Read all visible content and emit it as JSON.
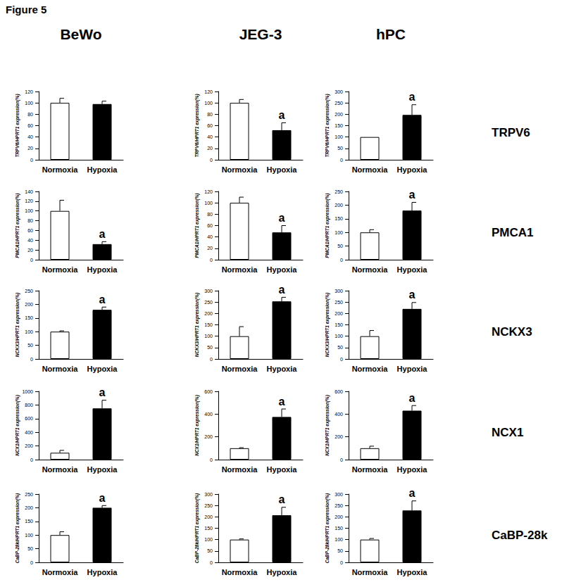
{
  "title": "Figure 5",
  "column_titles": [
    "BeWo",
    "JEG-3",
    "hPC"
  ],
  "row_labels": [
    "TRPV6",
    "PMCA1",
    "NCKX3",
    "NCX1",
    "CaBP-28k"
  ],
  "chart_data": [
    {
      "type": "bar",
      "y_label": "TRPV6/HPRT1 expression(%)",
      "categories": [
        "Normoxia",
        "Hypoxia"
      ],
      "values": [
        100,
        98
      ],
      "errors": [
        8,
        5
      ],
      "colors": [
        "#ffffff",
        "#000000"
      ],
      "ylim": [
        0,
        120
      ],
      "yticks": [
        0,
        20,
        40,
        60,
        80,
        100,
        120
      ],
      "grid": false,
      "annotations": []
    },
    {
      "type": "bar",
      "y_label": "TRPV6/HPRT1 expression(%)",
      "categories": [
        "Normoxia",
        "Hypoxia"
      ],
      "values": [
        100,
        52
      ],
      "errors": [
        6,
        13
      ],
      "colors": [
        "#ffffff",
        "#000000"
      ],
      "ylim": [
        0,
        120
      ],
      "yticks": [
        0,
        20,
        40,
        60,
        80,
        100,
        120
      ],
      "grid": false,
      "annotations": [
        {
          "category": "Hypoxia",
          "text": "a"
        }
      ]
    },
    {
      "type": "bar",
      "y_label": "TRPV6/HPRT1 expression(%)",
      "categories": [
        "Normoxia",
        "Hypoxia"
      ],
      "values": [
        100,
        197
      ],
      "errors": [
        0,
        45
      ],
      "colors": [
        "#ffffff",
        "#000000"
      ],
      "ylim": [
        0,
        300
      ],
      "yticks": [
        0,
        50,
        100,
        150,
        200,
        250,
        300
      ],
      "grid": false,
      "annotations": [
        {
          "category": "Hypoxia",
          "text": "a"
        }
      ]
    },
    {
      "type": "bar",
      "y_label": "PMCA1/HPRT1 expression(%)",
      "categories": [
        "Normoxia",
        "Hypoxia"
      ],
      "values": [
        100,
        32
      ],
      "errors": [
        22,
        5
      ],
      "colors": [
        "#ffffff",
        "#000000"
      ],
      "ylim": [
        0,
        140
      ],
      "yticks": [
        0,
        20,
        40,
        60,
        80,
        100,
        120,
        140
      ],
      "grid": false,
      "annotations": [
        {
          "category": "Hypoxia",
          "text": "a"
        }
      ]
    },
    {
      "type": "bar",
      "y_label": "PMCA1/HPRT1 expression(%)",
      "categories": [
        "Normoxia",
        "Hypoxia"
      ],
      "values": [
        100,
        48
      ],
      "errors": [
        10,
        12
      ],
      "colors": [
        "#ffffff",
        "#000000"
      ],
      "ylim": [
        0,
        120
      ],
      "yticks": [
        0,
        20,
        40,
        60,
        80,
        100,
        120
      ],
      "grid": false,
      "annotations": [
        {
          "category": "Hypoxia",
          "text": "a"
        }
      ]
    },
    {
      "type": "bar",
      "y_label": "PMCA1/HPRT1 expression(%)",
      "categories": [
        "Normoxia",
        "Hypoxia"
      ],
      "values": [
        100,
        180
      ],
      "errors": [
        10,
        30
      ],
      "colors": [
        "#ffffff",
        "#000000"
      ],
      "ylim": [
        0,
        250
      ],
      "yticks": [
        0,
        50,
        100,
        150,
        200,
        250
      ],
      "grid": false,
      "annotations": [
        {
          "category": "Hypoxia",
          "text": "a"
        }
      ]
    },
    {
      "type": "bar",
      "y_label": "NCKX3/HPRT1 expression(%)",
      "categories": [
        "Normoxia",
        "Hypoxia"
      ],
      "values": [
        100,
        180
      ],
      "errors": [
        3,
        10
      ],
      "colors": [
        "#ffffff",
        "#000000"
      ],
      "ylim": [
        0,
        250
      ],
      "yticks": [
        0,
        50,
        100,
        150,
        200,
        250
      ],
      "grid": false,
      "annotations": [
        {
          "category": "Hypoxia",
          "text": "a"
        }
      ]
    },
    {
      "type": "bar",
      "y_label": "NCKX3/HPRT1 expression(%)",
      "categories": [
        "Normoxia",
        "Hypoxia"
      ],
      "values": [
        100,
        253
      ],
      "errors": [
        42,
        18
      ],
      "colors": [
        "#ffffff",
        "#000000"
      ],
      "ylim": [
        0,
        300
      ],
      "yticks": [
        0,
        50,
        100,
        150,
        200,
        250,
        300
      ],
      "grid": false,
      "annotations": [
        {
          "category": "Hypoxia",
          "text": "a"
        }
      ]
    },
    {
      "type": "bar",
      "y_label": "NCKX3/HPRT1 expression(%)",
      "categories": [
        "Normoxia",
        "Hypoxia"
      ],
      "values": [
        100,
        220
      ],
      "errors": [
        25,
        28
      ],
      "colors": [
        "#ffffff",
        "#000000"
      ],
      "ylim": [
        0,
        300
      ],
      "yticks": [
        0,
        50,
        100,
        150,
        200,
        250,
        300
      ],
      "grid": false,
      "annotations": [
        {
          "category": "Hypoxia",
          "text": "a"
        }
      ]
    },
    {
      "type": "bar",
      "y_label": "NCX1/HPRT1 expression(%)",
      "categories": [
        "Normoxia",
        "Hypoxia"
      ],
      "values": [
        100,
        750
      ],
      "errors": [
        35,
        120
      ],
      "colors": [
        "#ffffff",
        "#000000"
      ],
      "ylim": [
        0,
        1000
      ],
      "yticks": [
        0,
        200,
        400,
        600,
        800,
        1000
      ],
      "grid": false,
      "annotations": [
        {
          "category": "Hypoxia",
          "text": "a"
        }
      ]
    },
    {
      "type": "bar",
      "y_label": "NCX1/HPRT1 expression(%)",
      "categories": [
        "Normoxia",
        "Hypoxia"
      ],
      "values": [
        100,
        375
      ],
      "errors": [
        5,
        70
      ],
      "colors": [
        "#ffffff",
        "#000000"
      ],
      "ylim": [
        0,
        600
      ],
      "yticks": [
        0,
        200,
        400,
        600
      ],
      "grid": false,
      "annotations": [
        {
          "category": "Hypoxia",
          "text": "a"
        }
      ]
    },
    {
      "type": "bar",
      "y_label": "NCX1/HPRT1 expression(%)",
      "categories": [
        "Normoxia",
        "Hypoxia"
      ],
      "values": [
        100,
        430
      ],
      "errors": [
        18,
        45
      ],
      "colors": [
        "#ffffff",
        "#000000"
      ],
      "ylim": [
        0,
        600
      ],
      "yticks": [
        0,
        200,
        400,
        600
      ],
      "grid": false,
      "annotations": [
        {
          "category": "Hypoxia",
          "text": "a"
        }
      ]
    },
    {
      "type": "bar",
      "y_label": "CaBP-28k/HPRT1 expression(%)",
      "categories": [
        "Normoxia",
        "Hypoxia"
      ],
      "values": [
        100,
        200
      ],
      "errors": [
        12,
        8
      ],
      "colors": [
        "#ffffff",
        "#000000"
      ],
      "ylim": [
        0,
        250
      ],
      "yticks": [
        0,
        50,
        100,
        150,
        200,
        250
      ],
      "grid": false,
      "annotations": [
        {
          "category": "Hypoxia",
          "text": "a"
        }
      ]
    },
    {
      "type": "bar",
      "y_label": "CaBP-28k/HPRT1 expression(%)",
      "categories": [
        "Normoxia",
        "Hypoxia"
      ],
      "values": [
        100,
        207
      ],
      "errors": [
        3,
        35
      ],
      "colors": [
        "#ffffff",
        "#000000"
      ],
      "ylim": [
        0,
        300
      ],
      "yticks": [
        0,
        50,
        100,
        150,
        200,
        250,
        300
      ],
      "grid": false,
      "annotations": [
        {
          "category": "Hypoxia",
          "text": "a"
        }
      ]
    },
    {
      "type": "bar",
      "y_label": "CaBP-28k/HPRT1 expression(%)",
      "categories": [
        "Normoxia",
        "Hypoxia"
      ],
      "values": [
        100,
        228
      ],
      "errors": [
        5,
        42
      ],
      "colors": [
        "#ffffff",
        "#000000"
      ],
      "ylim": [
        0,
        300
      ],
      "yticks": [
        0,
        50,
        100,
        150,
        200,
        250,
        300
      ],
      "grid": false,
      "annotations": [
        {
          "category": "Hypoxia",
          "text": "a"
        }
      ]
    }
  ]
}
